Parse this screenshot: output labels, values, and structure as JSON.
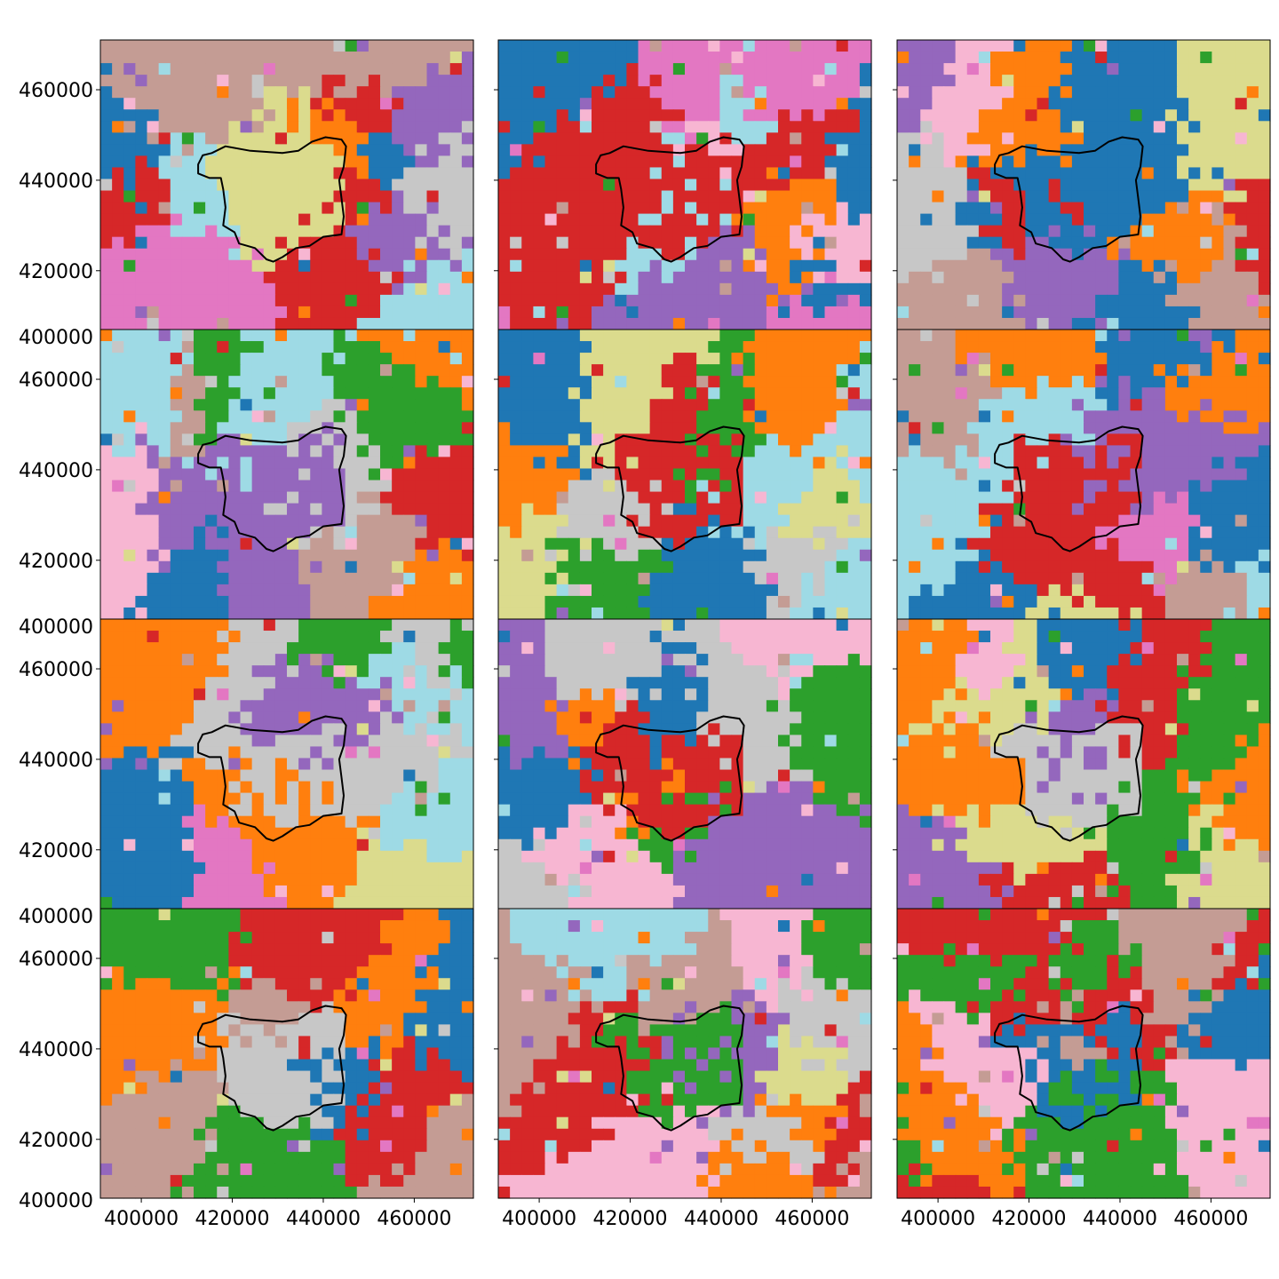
{
  "figure": {
    "palette": [
      "#1f77b4",
      "#ff7f0e",
      "#2ca02c",
      "#d62728",
      "#9467bd",
      "#c49c94",
      "#e377c2",
      "#f7b6d2",
      "#c7c7c7",
      "#dbdb8d",
      "#9edae5"
    ],
    "outline_color": "#000000"
  },
  "chart_data": {
    "type": "heatmap",
    "layout": "4 rows x 3 columns of panels with shared x and y axes",
    "grid_size": [
      32,
      25
    ],
    "xlim": [
      391000,
      473000
    ],
    "ylim": [
      407000,
      471000
    ],
    "xticks": [
      400000,
      420000,
      440000,
      460000
    ],
    "xtick_labels": [
      "400000",
      "420000",
      "440000",
      "460000"
    ],
    "yticks": [
      420000,
      440000,
      460000
    ],
    "ytick_labels": [
      "420000",
      "440000",
      "460000"
    ],
    "bottom_ytick_label": "400000",
    "panels": [
      {
        "panel": 1,
        "region_color": "#dbdb8d",
        "dominant_colors": [
          "#d62728",
          "#1f77b4",
          "#9467bd",
          "#c49c94",
          "#9edae5"
        ]
      },
      {
        "panel": 2,
        "region_color": "#d62728",
        "dominant_colors": [
          "#ff7f0e",
          "#1f77b4",
          "#f7b6d2",
          "#9edae5",
          "#d62728"
        ]
      },
      {
        "panel": 3,
        "region_color": "#1f77b4",
        "dominant_colors": [
          "#c49c94",
          "#1f77b4",
          "#d62728",
          "#9467bd",
          "#ff7f0e"
        ]
      },
      {
        "panel": 4,
        "region_color": "#9467bd",
        "dominant_colors": [
          "#ff7f0e",
          "#9467bd",
          "#f7b6d2",
          "#9edae5",
          "#2ca02c"
        ]
      },
      {
        "panel": 5,
        "region_color": "#d62728",
        "dominant_colors": [
          "#9edae5",
          "#1f77b4",
          "#c7c7c7",
          "#ff7f0e",
          "#dbdb8d"
        ]
      },
      {
        "panel": 6,
        "region_color": "#d62728",
        "dominant_colors": [
          "#9edae5",
          "#1f77b4",
          "#d62728",
          "#c49c94",
          "#ff7f0e"
        ]
      },
      {
        "panel": 7,
        "region_color": "#c7c7c7",
        "dominant_colors": [
          "#1f77b4",
          "#2ca02c",
          "#ff7f0e",
          "#9467bd",
          "#c7c7c7"
        ]
      },
      {
        "panel": 8,
        "region_color": "#d62728",
        "dominant_colors": [
          "#c7c7c7",
          "#ff7f0e",
          "#9467bd",
          "#2ca02c",
          "#f7b6d2"
        ]
      },
      {
        "panel": 9,
        "region_color": "#c7c7c7",
        "dominant_colors": [
          "#ff7f0e",
          "#9467bd",
          "#2ca02c",
          "#dbdb8d",
          "#d62728"
        ]
      },
      {
        "panel": 10,
        "region_color": "#c7c7c7",
        "dominant_colors": [
          "#2ca02c",
          "#1f77b4",
          "#d62728",
          "#ff7f0e",
          "#c49c94"
        ]
      },
      {
        "panel": 11,
        "region_color": "#2ca02c",
        "dominant_colors": [
          "#9edae5",
          "#ff7f0e",
          "#d62728",
          "#c49c94",
          "#f7b6d2"
        ]
      },
      {
        "panel": 12,
        "region_color": "#1f77b4",
        "dominant_colors": [
          "#d62728",
          "#2ca02c",
          "#ff7f0e",
          "#c49c94",
          "#f7b6d2"
        ]
      }
    ],
    "region_outline": [
      [
        412500,
        443500
      ],
      [
        413500,
        445500
      ],
      [
        415500,
        446000
      ],
      [
        418500,
        447500
      ],
      [
        424000,
        446500
      ],
      [
        431000,
        446000
      ],
      [
        434500,
        446500
      ],
      [
        437500,
        448500
      ],
      [
        440500,
        449500
      ],
      [
        444000,
        449000
      ],
      [
        445000,
        447500
      ],
      [
        444500,
        443000
      ],
      [
        443500,
        440000
      ],
      [
        444000,
        436000
      ],
      [
        444500,
        432000
      ],
      [
        444000,
        428000
      ],
      [
        440000,
        427500
      ],
      [
        437000,
        425500
      ],
      [
        434000,
        425000
      ],
      [
        431000,
        423000
      ],
      [
        429000,
        422000
      ],
      [
        427500,
        422500
      ],
      [
        425000,
        425000
      ],
      [
        421500,
        426000
      ],
      [
        420500,
        428500
      ],
      [
        418000,
        430000
      ],
      [
        418500,
        434000
      ],
      [
        418000,
        438000
      ],
      [
        417500,
        440500
      ],
      [
        415000,
        440500
      ],
      [
        412500,
        441500
      ],
      [
        412500,
        443500
      ]
    ]
  }
}
